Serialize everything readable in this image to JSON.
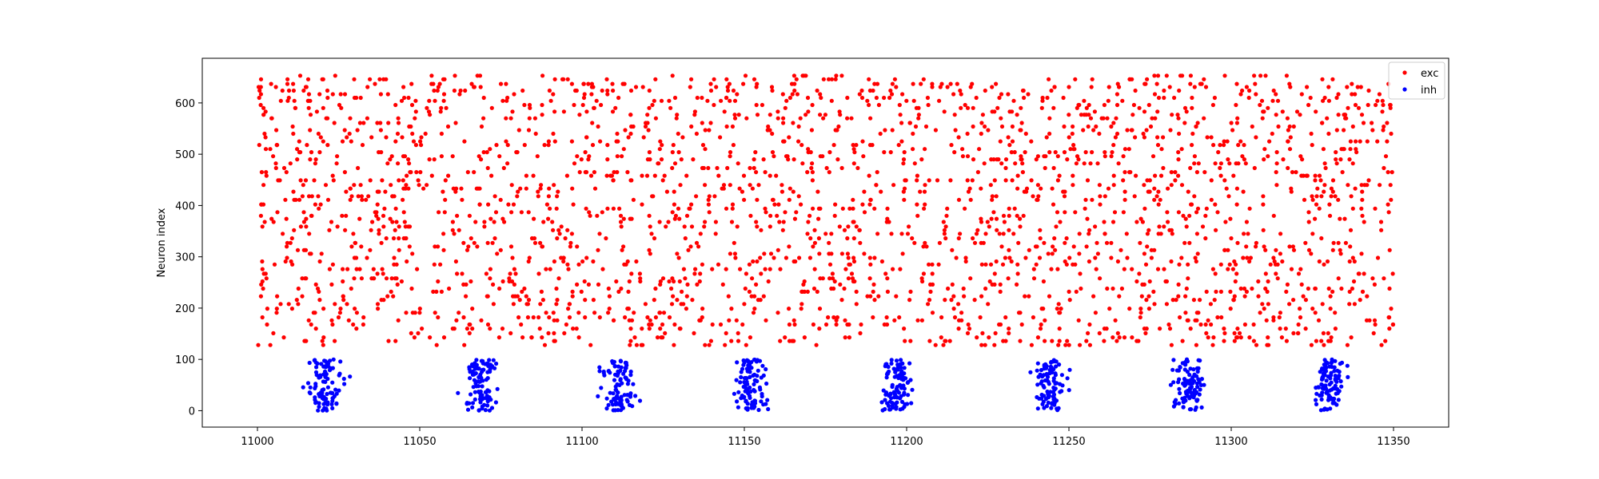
{
  "chart_data": {
    "type": "scatter",
    "title": "",
    "xlabel": "",
    "ylabel": "Neuron index",
    "xlim": [
      10983,
      11367
    ],
    "ylim": [
      -32,
      687
    ],
    "xticks": [
      11000,
      11050,
      11100,
      11150,
      11200,
      11250,
      11300,
      11350
    ],
    "yticks": [
      0,
      100,
      200,
      300,
      400,
      500,
      600
    ],
    "grid": false,
    "legend_position": "top-right",
    "colors": {
      "exc": "#ff0000",
      "inh": "#0000ff"
    },
    "series": [
      {
        "name": "exc",
        "color": "#ff0000",
        "x_range": [
          11000,
          11350
        ],
        "y_range": [
          128,
          656
        ],
        "approx_point_count": 2600
      },
      {
        "name": "inh",
        "color": "#0000ff",
        "y_range": [
          0,
          100
        ],
        "bursts": [
          {
            "center": 11021,
            "spread": 2.2
          },
          {
            "center": 11069,
            "spread": 2.4
          },
          {
            "center": 11111,
            "spread": 2.4
          },
          {
            "center": 11152,
            "spread": 2.3
          },
          {
            "center": 11197,
            "spread": 2.3
          },
          {
            "center": 11244,
            "spread": 2.2
          },
          {
            "center": 11287,
            "spread": 2.2
          },
          {
            "center": 11330,
            "spread": 2.3
          }
        ],
        "approx_points_per_burst": 95
      }
    ]
  }
}
